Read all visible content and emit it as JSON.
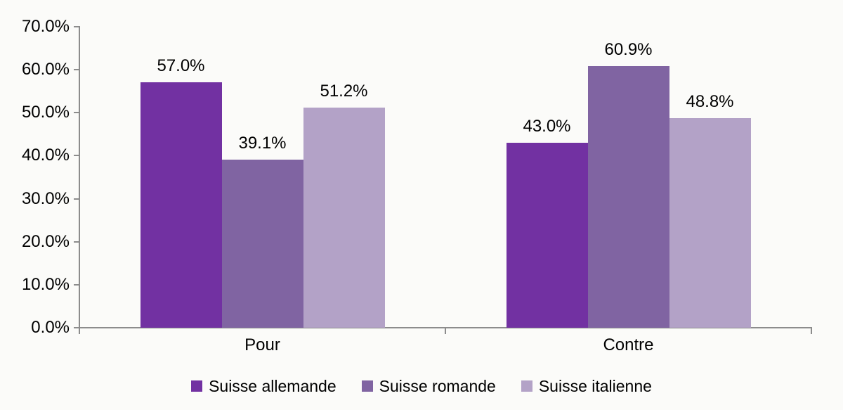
{
  "chart_data": {
    "type": "bar",
    "categories": [
      "Pour",
      "Contre"
    ],
    "series": [
      {
        "name": "Suisse allemande",
        "color": "#7231A2",
        "values": [
          57.0,
          43.0
        ],
        "labels": [
          "57.0%",
          "43.0%"
        ]
      },
      {
        "name": "Suisse romande",
        "color": "#8064A2",
        "values": [
          39.1,
          60.9
        ],
        "labels": [
          "39.1%",
          "60.9%"
        ]
      },
      {
        "name": "Suisse italienne",
        "color": "#B3A2C7",
        "values": [
          51.2,
          48.8
        ],
        "labels": [
          "51.2%",
          "48.8%"
        ]
      }
    ],
    "y_axis": {
      "min": 0,
      "max": 70,
      "step": 10,
      "tick_labels": [
        "0.0%",
        "10.0%",
        "20.0%",
        "30.0%",
        "40.0%",
        "50.0%",
        "60.0%",
        "70.0%"
      ]
    },
    "legend": {
      "position": "bottom-center",
      "items": [
        "Suisse allemande",
        "Suisse romande",
        "Suisse italienne"
      ]
    },
    "grid": false,
    "colors": {
      "axis": "#8C8C8C",
      "text": "#000000",
      "background": "#FBFBF9"
    }
  }
}
